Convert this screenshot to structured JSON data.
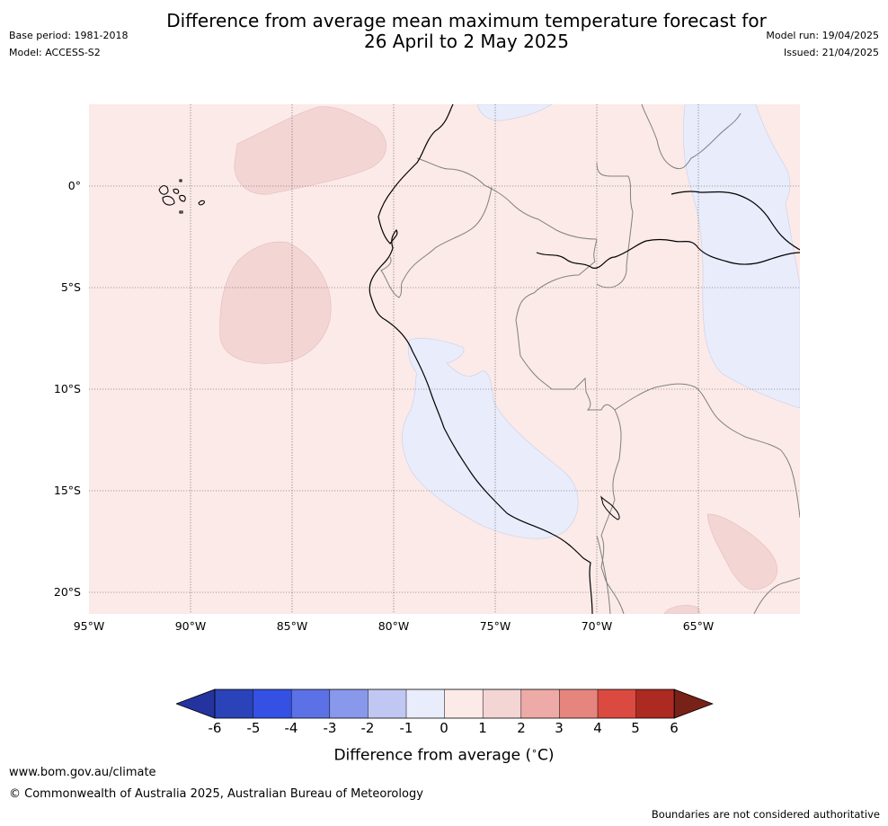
{
  "title_line1": "Difference from average mean maximum temperature forecast for",
  "title_line2": "26 April to 2 May 2025",
  "base_period": "Base period: 1981-2018",
  "model": "Model: ACCESS-S2",
  "model_run": "Model run: 19/04/2025",
  "issued": "Issued: 21/04/2025",
  "map": {
    "region": "Western South America (Peru / Ecuador)",
    "lon_range": [
      -95,
      -60
    ],
    "lat_range": [
      -21,
      4
    ],
    "lat_labels": [
      "0°",
      "5°S",
      "10°S",
      "15°S",
      "20°S"
    ],
    "lat_values": [
      0,
      -5,
      -10,
      -15,
      -20
    ],
    "lon_labels": [
      "95°W",
      "90°W",
      "85°W",
      "80°W",
      "75°W",
      "70°W",
      "65°W"
    ],
    "lon_values": [
      -95,
      -90,
      -85,
      -80,
      -75,
      -70,
      -65
    ],
    "background_anomaly": "0 to 1",
    "colors": {
      "anom_0_1": "#fbeae8",
      "anom_1_2": "#f3d5d4",
      "anom_m1_0": "#e9ecfb",
      "coast": "#000000",
      "border": "#808080",
      "grid": "#555555"
    }
  },
  "colorbar": {
    "ticks": [
      "-6",
      "-5",
      "-4",
      "-3",
      "-2",
      "-1",
      "0",
      "1",
      "2",
      "3",
      "4",
      "5",
      "6"
    ],
    "colors": [
      "#25339f",
      "#2a43b8",
      "#3451e3",
      "#5c71e6",
      "#8898ea",
      "#c0c7f3",
      "#e9ecfb",
      "#fbeae8",
      "#f3d5d4",
      "#eeaaa6",
      "#e6857e",
      "#db4a40",
      "#ac2a22",
      "#772119"
    ],
    "label": "Difference from average (°C)",
    "label_prefix": "Difference from average (",
    "label_unit": "°C",
    "label_suffix": ")"
  },
  "footer": {
    "url": "www.bom.gov.au/climate",
    "copyright": "© Commonwealth of Australia 2025, Australian Bureau of Meteorology",
    "disclaimer": "Boundaries are not considered authoritative"
  }
}
